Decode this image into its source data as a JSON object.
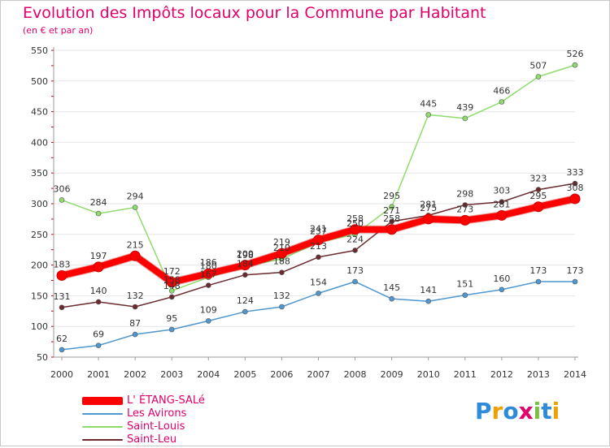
{
  "title": "Evolution des Impôts locaux pour la Commune par Habitant",
  "subtitle": "(en € et par an)",
  "colors": {
    "title": "#e2006a",
    "axis_text": "#333333",
    "grid": "#e6e6e6"
  },
  "logo": {
    "text": "Proxiti",
    "letters": [
      {
        "ch": "P",
        "color": "#2e8bd9"
      },
      {
        "ch": "r",
        "color": "#f0a000"
      },
      {
        "ch": "o",
        "color": "#2e8bd9"
      },
      {
        "ch": "x",
        "color": "#e2006a"
      },
      {
        "ch": "i",
        "color": "#7ac142"
      },
      {
        "ch": "t",
        "color": "#2e8bd9"
      },
      {
        "ch": "i",
        "color": "#f0a000"
      }
    ]
  },
  "chart_data": {
    "type": "line",
    "x": [
      "2000",
      "2001",
      "2002",
      "2003",
      "2004",
      "2005",
      "2006",
      "2007",
      "2008",
      "2009",
      "2010",
      "2011",
      "2012",
      "2013",
      "2014"
    ],
    "ylim": [
      50,
      550
    ],
    "yticks": [
      50,
      100,
      150,
      200,
      250,
      300,
      350,
      400,
      450,
      500,
      550
    ],
    "grid": true,
    "legend_position": "bottom-left",
    "series": [
      {
        "name": "L' ÉTANG-SALé",
        "color": "#ff0000",
        "line_width": 8,
        "show_labels": true,
        "values": [
          183,
          197,
          215,
          172,
          186,
          200,
          219,
          241,
          258,
          258,
          275,
          273,
          281,
          295,
          308
        ]
      },
      {
        "name": "Les Avirons",
        "color": "#4f97cf",
        "line_width": 1.5,
        "show_labels": true,
        "values": [
          62,
          69,
          87,
          95,
          109,
          124,
          132,
          154,
          173,
          145,
          141,
          151,
          160,
          173,
          173
        ]
      },
      {
        "name": "Saint-Louis",
        "color": "#8fdc6c",
        "line_width": 1.5,
        "show_labels": true,
        "values": [
          306,
          284,
          294,
          158,
          180,
          198,
          210,
          237,
          250,
          295,
          445,
          439,
          466,
          507,
          526
        ]
      },
      {
        "name": "Saint-Leu",
        "color": "#6b2a2e",
        "line_width": 1.5,
        "show_labels": true,
        "values": [
          131,
          140,
          132,
          148,
          167,
          184,
          188,
          213,
          224,
          271,
          281,
          298,
          303,
          323,
          333
        ]
      }
    ]
  }
}
